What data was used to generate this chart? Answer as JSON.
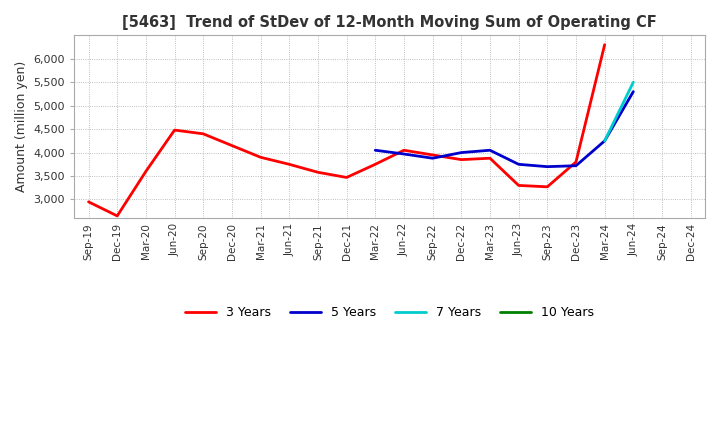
{
  "title": "[5463]  Trend of StDev of 12-Month Moving Sum of Operating CF",
  "ylabel": "Amount (million yen)",
  "ylim": [
    2600,
    6500
  ],
  "yticks": [
    3000,
    3500,
    4000,
    4500,
    5000,
    5500,
    6000
  ],
  "x_labels": [
    "Sep-19",
    "Dec-19",
    "Mar-20",
    "Jun-20",
    "Sep-20",
    "Dec-20",
    "Mar-21",
    "Jun-21",
    "Sep-21",
    "Dec-21",
    "Mar-22",
    "Jun-22",
    "Sep-22",
    "Dec-22",
    "Mar-23",
    "Jun-23",
    "Sep-23",
    "Dec-23",
    "Mar-24",
    "Jun-24",
    "Sep-24",
    "Dec-24"
  ],
  "series": {
    "3 Years": {
      "color": "#ff0000",
      "data": [
        2950,
        2650,
        3600,
        4480,
        4400,
        4150,
        3900,
        3750,
        3580,
        3470,
        3750,
        4050,
        3950,
        3850,
        3880,
        3300,
        3270,
        3800,
        6300,
        null,
        null,
        null
      ]
    },
    "5 Years": {
      "color": "#0000cc",
      "data": [
        null,
        null,
        null,
        null,
        null,
        null,
        null,
        null,
        null,
        null,
        4050,
        3970,
        3880,
        4000,
        4050,
        3750,
        3700,
        3720,
        4250,
        5300,
        null,
        null
      ]
    },
    "7 Years": {
      "color": "#00cccc",
      "data": [
        null,
        null,
        null,
        null,
        null,
        null,
        null,
        null,
        null,
        null,
        null,
        null,
        null,
        null,
        null,
        null,
        null,
        null,
        4250,
        5500,
        null,
        null
      ]
    },
    "10 Years": {
      "color": "#008000",
      "data": [
        null,
        null,
        null,
        null,
        null,
        null,
        null,
        null,
        null,
        null,
        null,
        null,
        null,
        null,
        null,
        null,
        null,
        null,
        null,
        null,
        null,
        null
      ]
    }
  },
  "legend_order": [
    "3 Years",
    "5 Years",
    "7 Years",
    "10 Years"
  ],
  "background_color": "#ffffff",
  "grid_color": "#aaaaaa"
}
